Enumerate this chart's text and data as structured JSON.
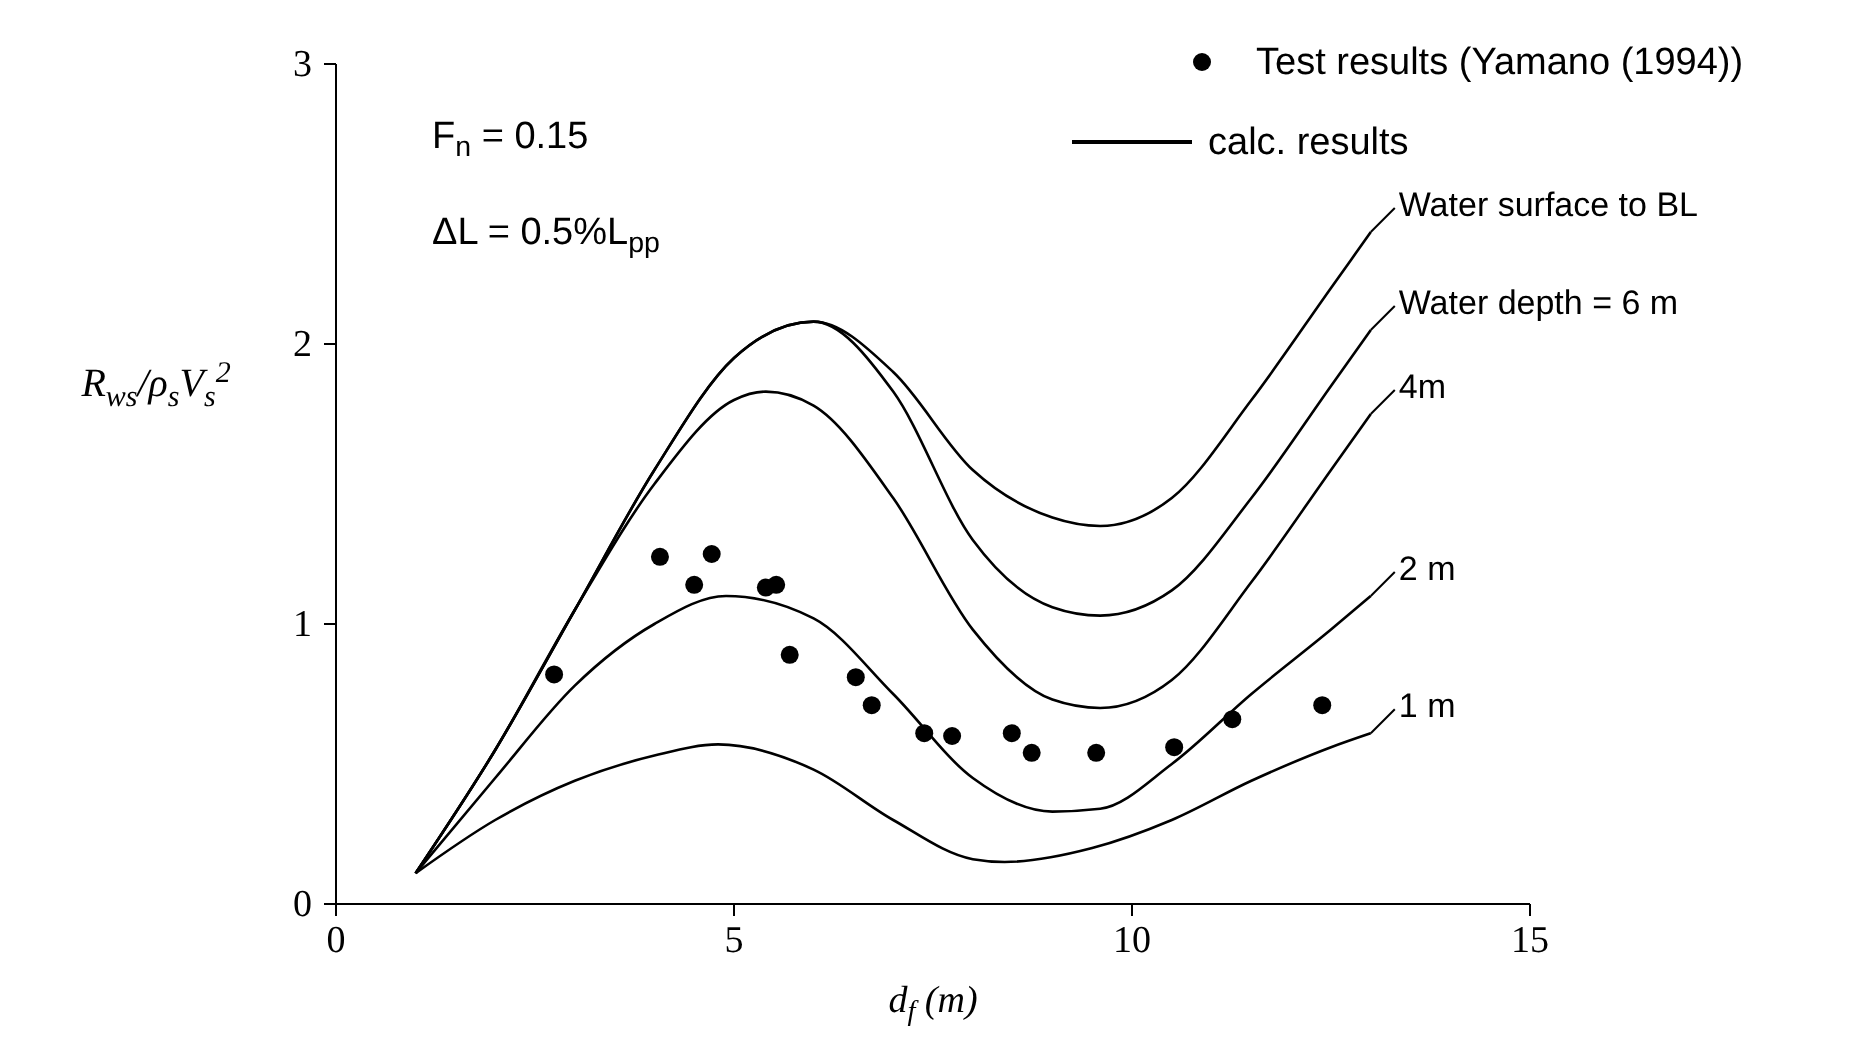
{
  "chart_data": {
    "type": "line",
    "xlabel": "d$_{f}$ (m)",
    "ylabel": "R$_{ws}$/ρ$_{s}$V$_{s}$$^{2}$",
    "xlim": [
      0,
      15
    ],
    "xticks": [
      0,
      5,
      10,
      15
    ],
    "ylim": [
      0,
      3
    ],
    "yticks": [
      0,
      1,
      2,
      3
    ],
    "grid": false,
    "legend": "top right",
    "line_style": "solid",
    "annotations": [
      "F$_{n}$ = 0.15",
      "ΔL = 0.5%L$_{pp}$",
      "calc. results"
    ],
    "series": [
      {
        "name": "Test results (Yamano (1994))",
        "type": "scatter",
        "marker": "circle",
        "color": "#000000",
        "x": [
          2.74,
          4.07,
          4.5,
          4.72,
          5.4,
          5.53,
          5.7,
          6.53,
          6.73,
          7.39,
          7.74,
          8.49,
          8.74,
          9.55,
          10.53,
          11.26,
          12.39
        ],
        "values": [
          0.82,
          1.24,
          1.14,
          1.25,
          1.13,
          1.14,
          0.89,
          0.81,
          0.71,
          0.61,
          0.6,
          0.61,
          0.54,
          0.54,
          0.56,
          0.66,
          0.71
        ]
      },
      {
        "name": "Water surface to BL",
        "color": "#000000",
        "x": [
          1,
          2,
          3,
          4,
          5,
          6,
          7,
          8,
          9,
          9.6,
          10.5,
          11.5,
          12.5,
          13
        ],
        "values": [
          0.11,
          0.55,
          1.05,
          1.55,
          1.95,
          2.08,
          1.9,
          1.55,
          1.38,
          1.35,
          1.45,
          1.8,
          2.2,
          2.4
        ]
      },
      {
        "name": "Water depth = 6 m",
        "color": "#000000",
        "x": [
          1,
          2,
          3,
          4,
          5,
          6,
          7,
          8,
          9,
          9.6,
          10.5,
          11.5,
          12.5,
          13
        ],
        "values": [
          0.11,
          0.55,
          1.05,
          1.55,
          1.95,
          2.08,
          1.83,
          1.3,
          1.06,
          1.03,
          1.12,
          1.45,
          1.85,
          2.05
        ]
      },
      {
        "name": "4m",
        "color": "#000000",
        "x": [
          1,
          2,
          3,
          4,
          5,
          5.4,
          6,
          7,
          8,
          9,
          9.6,
          10.5,
          11.5,
          12.5,
          13
        ],
        "values": [
          0.11,
          0.55,
          1.05,
          1.5,
          1.8,
          1.83,
          1.78,
          1.45,
          0.98,
          0.73,
          0.7,
          0.8,
          1.15,
          1.55,
          1.75
        ]
      },
      {
        "name": "2 m",
        "color": "#000000",
        "x": [
          1,
          2,
          3,
          4,
          4.9,
          6,
          7,
          8,
          9,
          9.6,
          10.5,
          11.5,
          12.5,
          13
        ],
        "values": [
          0.11,
          0.45,
          0.78,
          1.0,
          1.1,
          1.02,
          0.75,
          0.45,
          0.33,
          0.34,
          0.5,
          0.75,
          0.98,
          1.1
        ]
      },
      {
        "name": "1 m",
        "color": "#000000",
        "x": [
          1,
          2,
          3,
          4,
          4.8,
          6,
          7,
          8,
          8.4,
          9.5,
          10.5,
          11.5,
          12.5,
          13
        ],
        "values": [
          0.11,
          0.3,
          0.44,
          0.53,
          0.57,
          0.48,
          0.3,
          0.16,
          0.15,
          0.2,
          0.3,
          0.44,
          0.56,
          0.61
        ]
      }
    ]
  }
}
